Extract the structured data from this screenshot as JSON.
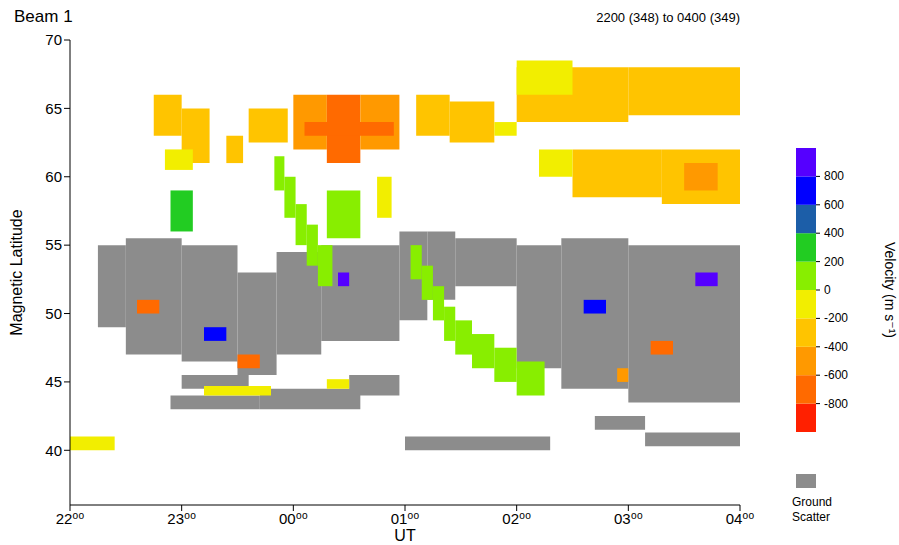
{
  "chart_data": {
    "type": "heatmap",
    "title": "Beam 1",
    "subtitle": "2200 (348) to 0400 (349)",
    "x_label": "UT",
    "y_label": "Magnetic Latitude",
    "xlim": [
      22,
      28
    ],
    "xticks": [
      {
        "value": 22,
        "label": "22⁰⁰"
      },
      {
        "value": 23,
        "label": "23⁰⁰"
      },
      {
        "value": 24,
        "label": "00⁰⁰"
      },
      {
        "value": 25,
        "label": "01⁰⁰"
      },
      {
        "value": 26,
        "label": "02⁰⁰"
      },
      {
        "value": 27,
        "label": "03⁰⁰"
      },
      {
        "value": 28,
        "label": "04⁰⁰"
      }
    ],
    "ylim": [
      36,
      70
    ],
    "yticks": [
      40,
      45,
      50,
      55,
      60,
      65,
      70
    ],
    "colorbar": {
      "label": "Velocity (m s⁻¹)",
      "range": [
        -1000,
        1000
      ],
      "ticks": [
        800,
        600,
        400,
        200,
        0,
        -200,
        -400,
        -600,
        -800
      ],
      "colors": [
        "#ff2000",
        "#ff6a00",
        "#ff9900",
        "#ffc400",
        "#f2ee00",
        "#88ee00",
        "#22cc22",
        "#1c5ea8",
        "#0000ff",
        "#5500ff"
      ]
    },
    "ground_scatter": {
      "name": "Ground Scatter",
      "color": "#8c8c8c",
      "cells": [
        [
          22.25,
          22.5,
          49,
          55
        ],
        [
          22.5,
          23.0,
          47,
          55.5
        ],
        [
          23.0,
          23.5,
          46.5,
          55
        ],
        [
          23.5,
          23.85,
          45.5,
          53
        ],
        [
          23.85,
          24.25,
          47,
          54.5
        ],
        [
          24.25,
          24.95,
          48,
          55
        ],
        [
          24.95,
          25.2,
          49.5,
          56
        ],
        [
          25.2,
          25.45,
          51,
          56
        ],
        [
          25.45,
          26.0,
          52,
          55.5
        ],
        [
          26.0,
          26.4,
          46,
          55
        ],
        [
          26.4,
          27.0,
          44.5,
          55.5
        ],
        [
          27.0,
          28.0,
          43.5,
          55
        ],
        [
          22.9,
          23.7,
          43,
          44
        ],
        [
          23.7,
          24.6,
          43,
          44.5
        ],
        [
          23.0,
          23.6,
          44.5,
          45.5
        ],
        [
          24.5,
          24.95,
          44,
          45.5
        ],
        [
          25.0,
          26.3,
          40,
          41
        ],
        [
          26.7,
          27.15,
          41.5,
          42.5
        ],
        [
          27.15,
          28.0,
          40.3,
          41.3
        ]
      ]
    },
    "echoes": [
      [
        22.75,
        23.0,
        63,
        66,
        -300
      ],
      [
        23.0,
        23.25,
        61,
        65,
        -400
      ],
      [
        22.85,
        23.1,
        60.5,
        62,
        -200
      ],
      [
        23.4,
        23.55,
        61,
        63,
        -250
      ],
      [
        23.6,
        23.95,
        62.5,
        65,
        -300
      ],
      [
        24.0,
        24.3,
        62,
        66,
        -500
      ],
      [
        24.3,
        24.6,
        61,
        66,
        -650
      ],
      [
        24.6,
        24.95,
        62,
        66,
        -550
      ],
      [
        24.1,
        24.9,
        63,
        64,
        -800
      ],
      [
        25.1,
        25.4,
        63,
        66,
        -350
      ],
      [
        25.4,
        25.8,
        62.5,
        65.5,
        -300
      ],
      [
        25.8,
        26.0,
        63,
        64,
        -200
      ],
      [
        26.0,
        27.0,
        64,
        68,
        -300
      ],
      [
        27.0,
        28.0,
        64.5,
        68,
        -250
      ],
      [
        26.0,
        26.5,
        66,
        68.5,
        -150
      ],
      [
        26.5,
        27.3,
        58.5,
        62,
        -350
      ],
      [
        27.3,
        28.0,
        58,
        62,
        -300
      ],
      [
        26.2,
        26.5,
        60,
        62,
        -200
      ],
      [
        27.5,
        27.8,
        59,
        61,
        -500
      ],
      [
        23.83,
        23.92,
        59,
        61.5,
        150
      ],
      [
        23.92,
        24.02,
        57,
        60,
        150
      ],
      [
        24.02,
        24.12,
        55,
        58,
        150
      ],
      [
        24.12,
        24.22,
        53.5,
        56.5,
        150
      ],
      [
        24.22,
        24.35,
        52,
        55,
        150
      ],
      [
        24.75,
        24.88,
        57,
        60,
        -50
      ],
      [
        24.3,
        24.6,
        55.5,
        59,
        50
      ],
      [
        22.9,
        23.1,
        56,
        59,
        200
      ],
      [
        25.05,
        25.15,
        52.5,
        55,
        100
      ],
      [
        25.15,
        25.25,
        51,
        53.5,
        100
      ],
      [
        25.25,
        25.35,
        49.5,
        52,
        100
      ],
      [
        25.35,
        25.45,
        48,
        50.5,
        100
      ],
      [
        25.45,
        25.6,
        47,
        49.5,
        100
      ],
      [
        25.6,
        25.8,
        46,
        48.5,
        100
      ],
      [
        25.8,
        26.0,
        45,
        47.5,
        100
      ],
      [
        26.0,
        26.25,
        44,
        46.5,
        100
      ],
      [
        22.6,
        22.8,
        50,
        51,
        -700
      ],
      [
        23.2,
        23.4,
        48,
        49,
        700
      ],
      [
        23.5,
        23.7,
        46,
        47,
        -800
      ],
      [
        24.4,
        24.5,
        52,
        53,
        800
      ],
      [
        26.6,
        26.8,
        50,
        51,
        700
      ],
      [
        27.2,
        27.4,
        47,
        48,
        -700
      ],
      [
        27.6,
        27.8,
        52,
        53,
        900
      ],
      [
        26.9,
        27.0,
        45,
        46,
        -500
      ],
      [
        22.0,
        22.4,
        40,
        41,
        -150
      ],
      [
        23.2,
        23.8,
        44,
        44.7,
        -150
      ],
      [
        24.3,
        24.5,
        44.5,
        45.2,
        -100
      ]
    ]
  }
}
